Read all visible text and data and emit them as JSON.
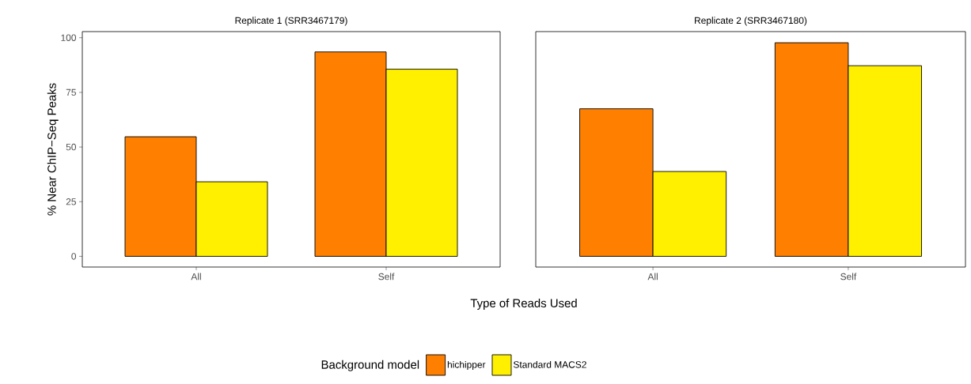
{
  "chart_data": [
    {
      "type": "bar",
      "title": "Replicate 1 (SRR3467179)",
      "xlabel": "Type of Reads Used",
      "ylabel": "% Near ChIP−Seq Peaks",
      "legend_title": "Background model",
      "legend": "bottom",
      "categories": [
        "All",
        "Self"
      ],
      "series": [
        {
          "name": "hichipper",
          "color": "#ff7f00",
          "values": [
            54.7,
            93.5
          ]
        },
        {
          "name": "Standard MACS2",
          "color": "#fff000",
          "values": [
            34.1,
            85.6
          ]
        }
      ],
      "ylim": [
        -4.9,
        102.8
      ],
      "yticks": [
        0,
        25,
        50,
        75,
        100
      ]
    },
    {
      "type": "bar",
      "title": "Replicate 2 (SRR3467180)",
      "tick_labels": "x",
      "categories": [
        "All",
        "Self"
      ],
      "series": [
        {
          "color": "#ff7f00",
          "values": [
            67.5,
            97.7
          ]
        },
        {
          "color": "#fff000",
          "values": [
            38.8,
            87.2
          ]
        }
      ],
      "ylim": [
        -4.9,
        102.8
      ],
      "yticks": [
        0,
        25,
        50,
        75,
        100
      ]
    }
  ]
}
